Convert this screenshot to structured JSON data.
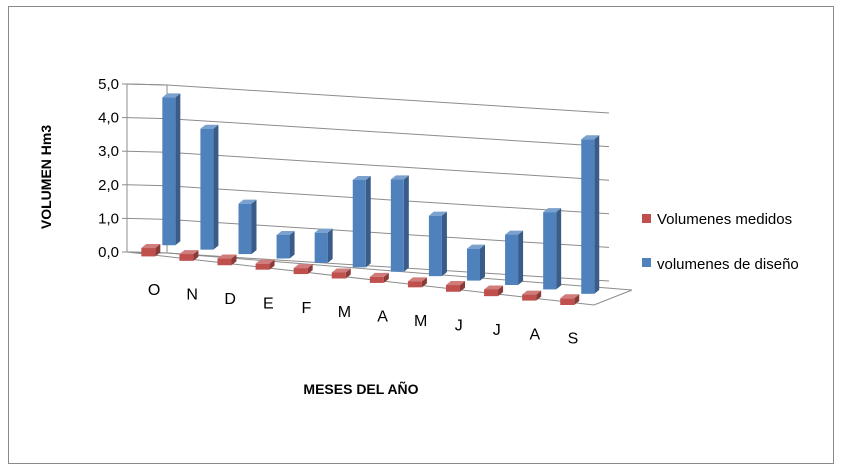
{
  "chart_data": {
    "type": "bar",
    "title": "",
    "xlabel": "MESES DEL AÑO",
    "ylabel": "VOLUMEN Hm3",
    "categories": [
      "O",
      "N",
      "D",
      "E",
      "F",
      "M",
      "A",
      "M",
      "J",
      "J",
      "A",
      "S"
    ],
    "y_ticks": [
      "0,0",
      "1,0",
      "2,0",
      "3,0",
      "4,0",
      "5,0"
    ],
    "ylim": [
      0,
      5
    ],
    "grid": true,
    "legend_position": "right",
    "series": [
      {
        "name": "Volumenes medidos",
        "color": "#c0504d",
        "values": [
          0.25,
          0.2,
          0.2,
          0.1,
          0.1,
          0.12,
          0.18,
          0.15,
          0.2,
          0.2,
          0.15,
          0.2
        ]
      },
      {
        "name": "volumenes de diseño",
        "color": "#4f81bd",
        "values": [
          4.4,
          3.6,
          1.5,
          0.7,
          0.9,
          2.6,
          2.75,
          1.8,
          0.95,
          1.5,
          2.3,
          4.6
        ]
      }
    ]
  }
}
